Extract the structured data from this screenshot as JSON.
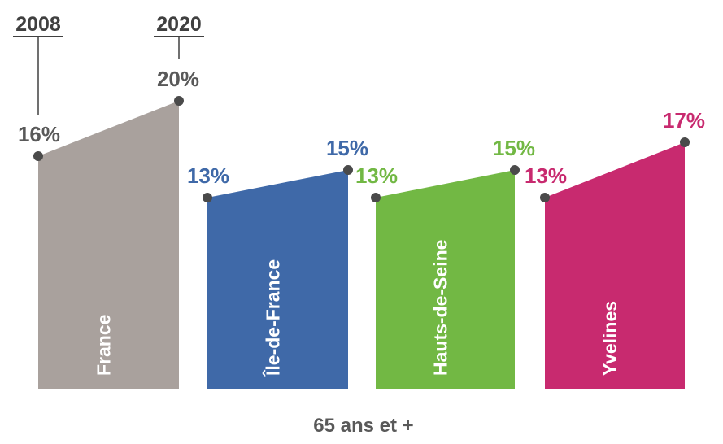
{
  "chart_data": {
    "type": "area",
    "x": [
      "2008",
      "2020"
    ],
    "categories": [
      "France",
      "Île-de-France",
      "Hauts-de-Seine",
      "Yvelines"
    ],
    "series": [
      {
        "name": "France",
        "values": [
          16,
          20
        ],
        "labels": [
          "16%",
          "20%"
        ],
        "color": "#a9a19d"
      },
      {
        "name": "Île-de-France",
        "values": [
          13,
          15
        ],
        "labels": [
          "13%",
          "15%"
        ],
        "color": "#3f69a8"
      },
      {
        "name": "Hauts-de-Seine",
        "values": [
          13,
          15
        ],
        "labels": [
          "13%",
          "15%"
        ],
        "color": "#72b844"
      },
      {
        "name": "Yvelines",
        "values": [
          13,
          17
        ],
        "labels": [
          "13%",
          "17%"
        ],
        "color": "#c82a6f"
      }
    ],
    "year_labels": [
      "2008",
      "2020"
    ],
    "caption": "65 ans et +",
    "unit": "%"
  }
}
